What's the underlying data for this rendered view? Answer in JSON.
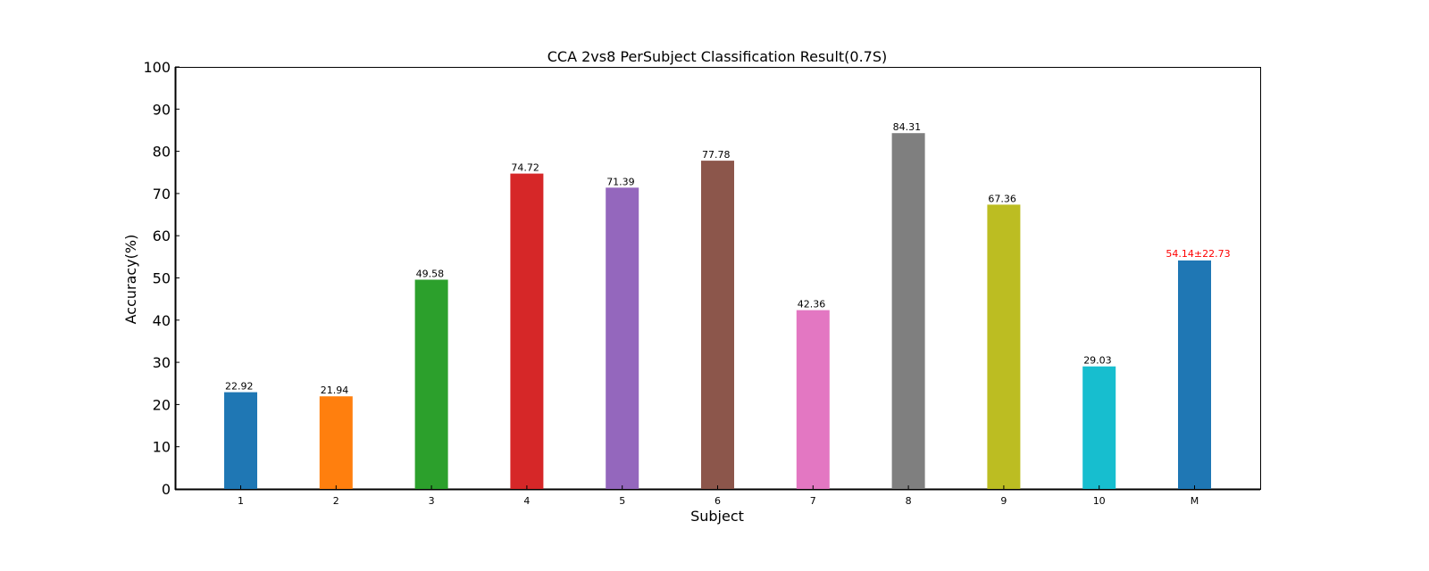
{
  "chart_data": {
    "type": "bar",
    "title": "CCA 2vs8 PerSubject Classification Result(0.7S)",
    "xlabel": "Subject",
    "ylabel": "Accuracy(%)",
    "ylim": [
      0,
      100
    ],
    "yticks": [
      0,
      10,
      20,
      30,
      40,
      50,
      60,
      70,
      80,
      90,
      100
    ],
    "grid": false,
    "categories": [
      "1",
      "2",
      "3",
      "4",
      "5",
      "6",
      "7",
      "8",
      "9",
      "10",
      "M"
    ],
    "values": [
      22.92,
      21.94,
      49.58,
      74.72,
      71.39,
      77.78,
      42.36,
      84.31,
      67.36,
      29.03,
      54.14
    ],
    "labels": [
      "22.92",
      "21.94",
      "49.58",
      "74.72",
      "71.39",
      "77.78",
      "42.36",
      "84.31",
      "67.36",
      "29.03",
      "54.14±22.73"
    ],
    "colors": [
      "#1f77b4",
      "#ff7f0e",
      "#2ca02c",
      "#d62728",
      "#9467bd",
      "#8c564b",
      "#e377c2",
      "#7f7f7f",
      "#bcbd22",
      "#17becf",
      "#1f77b4"
    ],
    "label_colors": [
      "#000000",
      "#000000",
      "#000000",
      "#000000",
      "#000000",
      "#000000",
      "#000000",
      "#000000",
      "#000000",
      "#000000",
      "#ff0000"
    ]
  }
}
